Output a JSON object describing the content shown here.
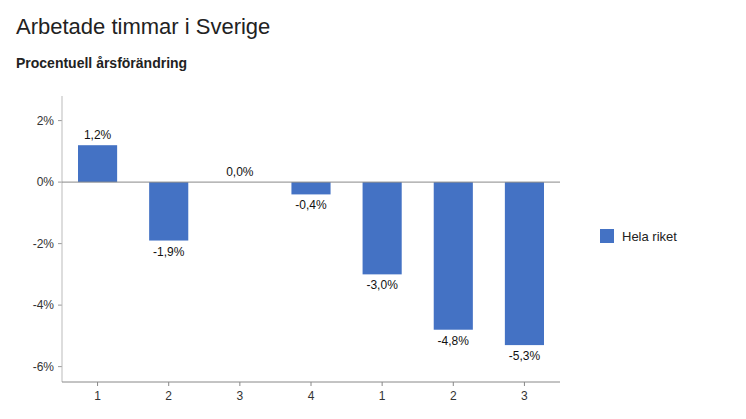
{
  "chart_data": {
    "type": "bar",
    "title": "Arbetade timmar i Sverige",
    "subtitle": "Procentuell årsförändring",
    "categories": [
      "1",
      "2",
      "3",
      "4",
      "1",
      "2",
      "3"
    ],
    "series": [
      {
        "name": "Hela riket",
        "color": "#4472C4",
        "values": [
          1.2,
          -1.9,
          0.0,
          -0.4,
          -3.0,
          -4.8,
          -5.3
        ],
        "value_labels": [
          "1,2%",
          "-1,9%",
          "0,0%",
          "-0,4%",
          "-3,0%",
          "-4,8%",
          "-5,3%"
        ]
      }
    ],
    "ylim": [
      -6.5,
      2.8
    ],
    "yticks": [
      {
        "value": 2,
        "label": "2%"
      },
      {
        "value": 0,
        "label": "0%"
      },
      {
        "value": -2,
        "label": "-2%"
      },
      {
        "value": -4,
        "label": "-4%"
      },
      {
        "value": -6,
        "label": "-6%"
      }
    ],
    "data_labels": true,
    "grid": false,
    "legend": "right"
  }
}
